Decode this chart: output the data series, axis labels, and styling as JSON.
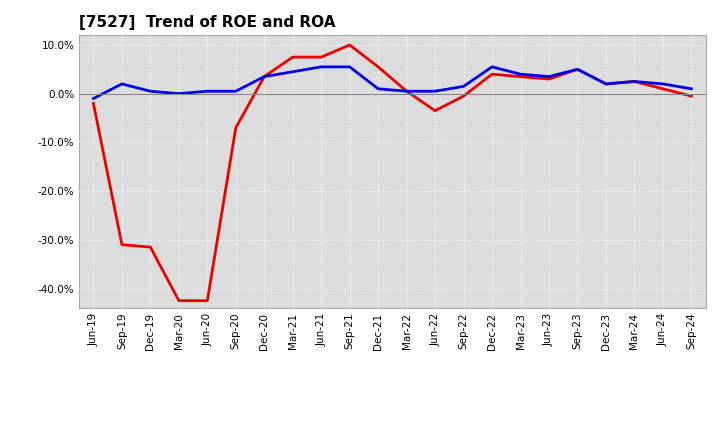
{
  "title": "[7527]  Trend of ROE and ROA",
  "x_labels": [
    "Jun-19",
    "Sep-19",
    "Dec-19",
    "Mar-20",
    "Jun-20",
    "Sep-20",
    "Dec-20",
    "Mar-21",
    "Jun-21",
    "Sep-21",
    "Dec-21",
    "Mar-22",
    "Jun-22",
    "Sep-22",
    "Dec-22",
    "Mar-23",
    "Jun-23",
    "Sep-23",
    "Dec-23",
    "Mar-24",
    "Jun-24",
    "Sep-24"
  ],
  "roe": [
    -2.0,
    -31.0,
    -31.5,
    -42.5,
    -42.5,
    -7.0,
    3.5,
    7.5,
    7.5,
    10.0,
    5.5,
    0.5,
    -3.5,
    -0.5,
    4.0,
    3.5,
    3.0,
    5.0,
    2.0,
    2.5,
    1.0,
    -0.5
  ],
  "roa": [
    -1.0,
    2.0,
    0.5,
    0.0,
    0.5,
    0.5,
    3.5,
    4.5,
    5.5,
    5.5,
    1.0,
    0.5,
    0.5,
    1.5,
    5.5,
    4.0,
    3.5,
    5.0,
    2.0,
    2.5,
    2.0,
    1.0
  ],
  "roe_color": "#ee0000",
  "roa_color": "#0000ee",
  "bg_color": "#ffffff",
  "plot_bg_color": "#dcdcdc",
  "grid_color": "#ffffff",
  "ylim": [
    -44,
    12
  ],
  "yticks": [
    -40.0,
    -30.0,
    -20.0,
    -10.0,
    0.0,
    10.0
  ],
  "line_width": 2.0,
  "figsize": [
    7.2,
    4.4
  ],
  "dpi": 100
}
